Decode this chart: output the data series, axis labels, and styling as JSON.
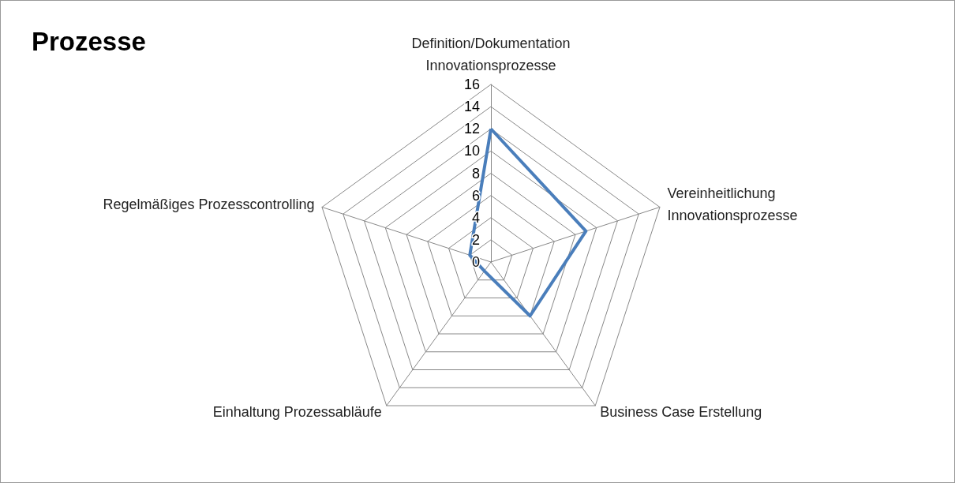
{
  "chart_data": {
    "type": "radar",
    "title": "Prozesse",
    "categories": [
      "Definition/Dokumentation\nInnovationsprozesse",
      "Vereinheitlichung\nInnovationsprozesse",
      "Business Case Erstellung",
      "Einhaltung Prozessabläufe",
      "Regelmäßiges Prozesscontrolling"
    ],
    "series": [
      {
        "color": "#4a7ebb",
        "values": [
          12,
          9,
          6,
          1,
          2
        ]
      }
    ],
    "ylim": [
      0,
      16
    ],
    "yticks": [
      0,
      2,
      4,
      6,
      8,
      10,
      12,
      14,
      16
    ],
    "marker": "none"
  }
}
